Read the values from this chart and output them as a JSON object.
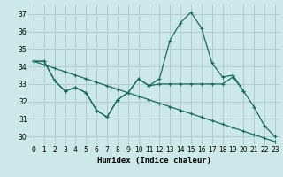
{
  "title": "",
  "xlabel": "Humidex (Indice chaleur)",
  "background_color": "#cce8e8",
  "grid_color": "#b0cccc",
  "line_color": "#1a6b5a",
  "x_values": [
    0,
    1,
    2,
    3,
    4,
    5,
    6,
    7,
    8,
    9,
    10,
    11,
    12,
    13,
    14,
    15,
    16,
    17,
    18,
    19,
    20,
    21,
    22,
    23
  ],
  "line_main": [
    34.3,
    34.3,
    33.2,
    32.6,
    32.8,
    32.5,
    31.5,
    31.1,
    32.1,
    32.5,
    33.3,
    32.9,
    33.3,
    35.5,
    36.5,
    37.1,
    36.2,
    34.2,
    33.4,
    33.5,
    32.6,
    31.7,
    30.6,
    30.0
  ],
  "line_flat": [
    34.3,
    34.3,
    33.2,
    32.6,
    32.8,
    32.5,
    31.5,
    31.1,
    32.1,
    32.5,
    33.3,
    32.9,
    33.0,
    33.0,
    33.0,
    33.0,
    33.0,
    33.0,
    33.0,
    33.4,
    32.6,
    null,
    null,
    null
  ],
  "line_diagonal": [
    34.3,
    34.1,
    33.9,
    33.7,
    33.5,
    33.3,
    33.1,
    32.9,
    32.7,
    32.5,
    32.3,
    32.1,
    31.9,
    31.7,
    31.5,
    31.3,
    31.1,
    30.9,
    30.7,
    30.5,
    30.3,
    30.1,
    29.9,
    29.7
  ],
  "ylim": [
    29.5,
    37.5
  ],
  "xlim": [
    -0.5,
    23.5
  ],
  "yticks": [
    30,
    31,
    32,
    33,
    34,
    35,
    36,
    37
  ],
  "xticks": [
    0,
    1,
    2,
    3,
    4,
    5,
    6,
    7,
    8,
    9,
    10,
    11,
    12,
    13,
    14,
    15,
    16,
    17,
    18,
    19,
    20,
    21,
    22,
    23
  ],
  "tick_labelsize": 5.5,
  "xlabel_fontsize": 6.5,
  "marker_size": 3,
  "line_width": 0.9
}
